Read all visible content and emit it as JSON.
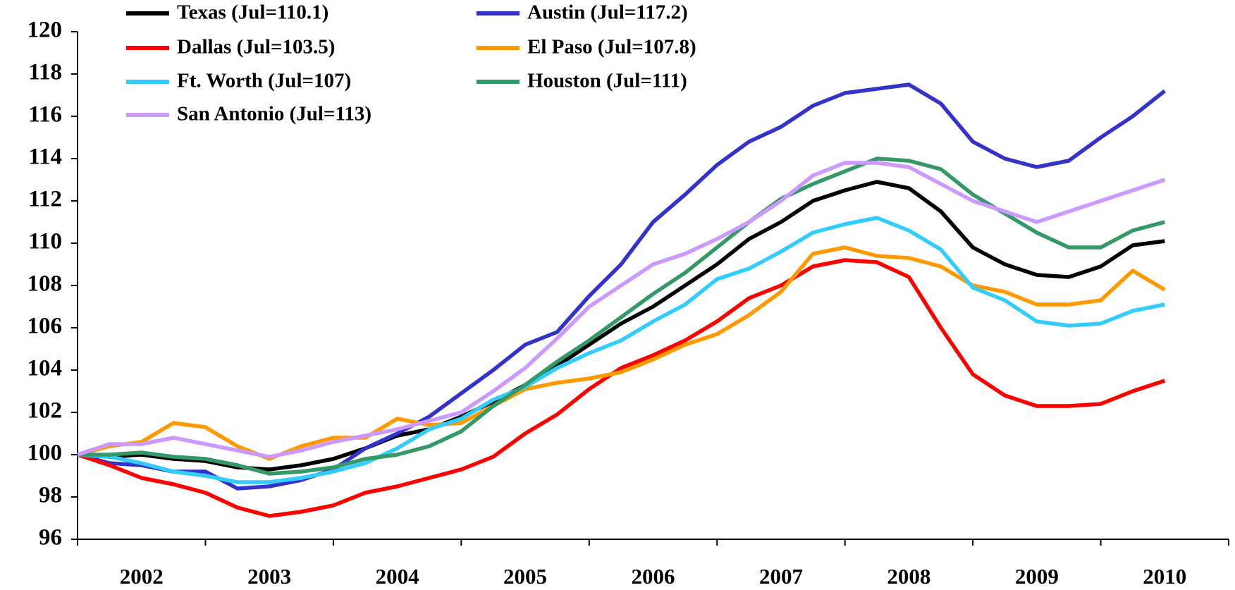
{
  "chart_data": {
    "type": "line",
    "x": [
      2002,
      2002.25,
      2002.5,
      2002.75,
      2003,
      2003.25,
      2003.5,
      2003.75,
      2004,
      2004.25,
      2004.5,
      2004.75,
      2005,
      2005.25,
      2005.5,
      2005.75,
      2006,
      2006.25,
      2006.5,
      2006.75,
      2007,
      2007.25,
      2007.5,
      2007.75,
      2008,
      2008.25,
      2008.5,
      2008.75,
      2009,
      2009.25,
      2009.5,
      2009.75,
      2010,
      2010.25,
      2010.5
    ],
    "xlim": [
      2002,
      2011
    ],
    "xticks": [
      2002,
      2003,
      2004,
      2005,
      2006,
      2007,
      2008,
      2009,
      2010,
      2011
    ],
    "x_labels": [
      "2002",
      "2003",
      "2004",
      "2005",
      "2006",
      "2007",
      "2008",
      "2009",
      "2010"
    ],
    "ylim": [
      96,
      120
    ],
    "yticks": [
      96,
      98,
      100,
      102,
      104,
      106,
      108,
      110,
      112,
      114,
      116,
      118,
      120
    ],
    "legend": "top-left",
    "series": [
      {
        "name": "Texas (Jul=110.1)",
        "color": "#000000",
        "values": [
          100,
          99.9,
          100,
          99.8,
          99.7,
          99.4,
          99.3,
          99.5,
          99.8,
          100.3,
          100.9,
          101.2,
          101.8,
          102.5,
          103.3,
          104.2,
          105.2,
          106.2,
          107.0,
          108.0,
          109.0,
          110.2,
          111.0,
          112.0,
          112.5,
          112.9,
          112.6,
          111.5,
          109.8,
          109.0,
          108.5,
          108.4,
          108.9,
          109.9,
          110.1
        ]
      },
      {
        "name": "Austin (Jul=117.2)",
        "color": "#3333cc",
        "values": [
          100,
          99.6,
          99.5,
          99.2,
          99.2,
          98.4,
          98.5,
          98.8,
          99.3,
          100.3,
          101.0,
          101.8,
          102.9,
          104.0,
          105.2,
          105.8,
          107.5,
          109.0,
          111.0,
          112.3,
          113.7,
          114.8,
          115.5,
          116.5,
          117.1,
          117.3,
          117.5,
          116.6,
          114.8,
          114.0,
          113.6,
          113.9,
          115.0,
          116.0,
          117.2
        ]
      },
      {
        "name": "Dallas (Jul=103.5)",
        "color": "#ff0000",
        "values": [
          100,
          99.5,
          98.9,
          98.6,
          98.2,
          97.5,
          97.1,
          97.3,
          97.6,
          98.2,
          98.5,
          98.9,
          99.3,
          99.9,
          101.0,
          101.9,
          103.1,
          104.1,
          104.7,
          105.4,
          106.3,
          107.4,
          108.0,
          108.9,
          109.2,
          109.1,
          108.4,
          106.0,
          103.8,
          102.8,
          102.3,
          102.3,
          102.4,
          103.0,
          103.5
        ]
      },
      {
        "name": "El Paso (Jul=107.8)",
        "color": "#ff9900",
        "values": [
          100,
          100.4,
          100.6,
          101.5,
          101.3,
          100.4,
          99.8,
          100.4,
          100.8,
          100.8,
          101.7,
          101.4,
          101.5,
          102.3,
          103.1,
          103.4,
          103.6,
          103.9,
          104.5,
          105.2,
          105.7,
          106.6,
          107.7,
          109.5,
          109.8,
          109.4,
          109.3,
          108.9,
          108.0,
          107.7,
          107.1,
          107.1,
          107.3,
          108.7,
          107.8
        ]
      },
      {
        "name": "Ft. Worth (Jul=107)",
        "color": "#33ccff",
        "values": [
          100,
          99.9,
          99.6,
          99.2,
          99.0,
          98.7,
          98.7,
          98.9,
          99.2,
          99.6,
          100.3,
          101.2,
          101.7,
          102.6,
          103.2,
          104.1,
          104.8,
          105.4,
          106.3,
          107.1,
          108.3,
          108.8,
          109.6,
          110.5,
          110.9,
          111.2,
          110.6,
          109.7,
          107.9,
          107.3,
          106.3,
          106.1,
          106.2,
          106.8,
          107.1
        ]
      },
      {
        "name": "Houston (Jul=111)",
        "color": "#339966",
        "values": [
          100,
          100.0,
          100.1,
          99.9,
          99.8,
          99.5,
          99.1,
          99.2,
          99.4,
          99.8,
          100.0,
          100.4,
          101.1,
          102.3,
          103.3,
          104.4,
          105.4,
          106.5,
          107.6,
          108.6,
          109.8,
          111.0,
          112.1,
          112.8,
          113.4,
          114.0,
          113.9,
          113.5,
          112.3,
          111.4,
          110.5,
          109.8,
          109.8,
          110.6,
          111.0
        ]
      },
      {
        "name": "San Antonio (Jul=113)",
        "color": "#cc99ff",
        "values": [
          100,
          100.5,
          100.5,
          100.8,
          100.5,
          100.2,
          99.9,
          100.2,
          100.6,
          100.9,
          101.2,
          101.6,
          102.0,
          103.0,
          104.1,
          105.5,
          107.0,
          108.0,
          109.0,
          109.5,
          110.2,
          111.0,
          112.0,
          113.2,
          113.8,
          113.8,
          113.6,
          112.8,
          112.0,
          111.5,
          111.0,
          111.5,
          112.0,
          112.5,
          113.0
        ]
      }
    ]
  }
}
